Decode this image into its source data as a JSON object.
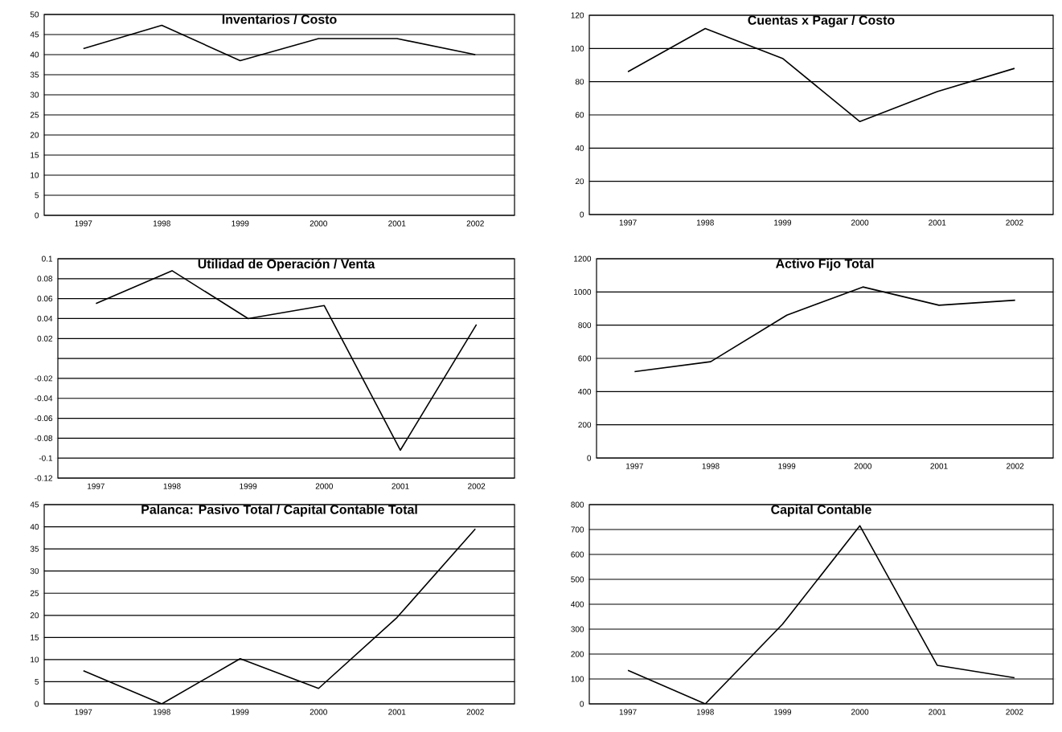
{
  "chart_data": [
    {
      "type": "line",
      "title": "Inventarios / Costo",
      "categories": [
        "1997",
        "1998",
        "1999",
        "2000",
        "2001",
        "2002"
      ],
      "color": "#000000",
      "grid": "y",
      "values": [
        41.5,
        47.3,
        38.5,
        44,
        44,
        40
      ],
      "ylim": [
        0,
        50
      ],
      "yticks": [
        0,
        5,
        10,
        15,
        20,
        25,
        30,
        35,
        40,
        45,
        50
      ]
    },
    {
      "type": "line",
      "title": "Cuentas x Pagar / Costo",
      "categories": [
        "1997",
        "1998",
        "1999",
        "2000",
        "2001",
        "2002"
      ],
      "color": "#000000",
      "grid": "y",
      "values": [
        86,
        112,
        94,
        56,
        74,
        88
      ],
      "ylim": [
        0,
        120
      ],
      "yticks": [
        0,
        20,
        40,
        60,
        80,
        100,
        120
      ]
    },
    {
      "type": "line",
      "title": "Utilidad de Operación / Venta",
      "categories": [
        "1997",
        "1998",
        "1999",
        "2000",
        "2001",
        "2002"
      ],
      "color": "#000000",
      "grid": "y",
      "values": [
        0.055,
        0.088,
        0.04,
        0.053,
        -0.092,
        0.034
      ],
      "ylim": [
        -0.12,
        0.1
      ],
      "yticks": [
        -0.12,
        -0.1,
        -0.08,
        -0.06,
        -0.04,
        -0.02,
        {
          "value": 0,
          "label": null
        },
        0.02,
        0.04,
        0.06,
        0.08,
        0.1
      ]
    },
    {
      "type": "line",
      "title": "Activo Fijo Total",
      "categories": [
        "1997",
        "1998",
        "1999",
        "2000",
        "2001",
        "2002"
      ],
      "color": "#000000",
      "grid": "y",
      "values": [
        520,
        580,
        860,
        1030,
        920,
        950
      ],
      "ylim": [
        0,
        1200
      ],
      "yticks": [
        0,
        200,
        400,
        600,
        800,
        1000,
        1200
      ]
    },
    {
      "type": "line",
      "title": "Palanca: Pasivo Total / Capital Contable Total",
      "categories": [
        "1997",
        "1998",
        "1999",
        "2000",
        "2001",
        "2002"
      ],
      "color": "#000000",
      "grid": "y",
      "values": [
        7.5,
        0,
        10.2,
        3.5,
        19.5,
        39.5
      ],
      "ylim": [
        0,
        45
      ],
      "yticks": [
        0,
        5,
        10,
        15,
        20,
        25,
        30,
        35,
        40,
        45
      ]
    },
    {
      "type": "line",
      "title": "Capital Contable",
      "categories": [
        "1997",
        "1998",
        "1999",
        "2000",
        "2001",
        "2002"
      ],
      "color": "#000000",
      "grid": "y",
      "values": [
        135,
        0,
        320,
        715,
        155,
        105
      ],
      "ylim": [
        0,
        800
      ],
      "yticks": [
        0,
        100,
        200,
        300,
        400,
        500,
        600,
        700,
        800
      ]
    }
  ]
}
